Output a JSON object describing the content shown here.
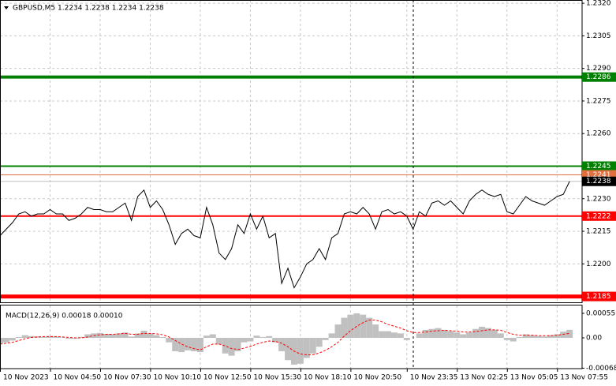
{
  "chart_data": [
    {
      "type": "line",
      "title": "GBPUSD,M5  1.2234 1.2238 1.2234 1.2238",
      "series": [
        {
          "color": "#000000",
          "values": [
            1.2213,
            1.2216,
            1.2219,
            1.2223,
            1.2224,
            1.2222,
            1.2223,
            1.2223,
            1.2225,
            1.2223,
            1.2223,
            1.222,
            1.2221,
            1.2223,
            1.2226,
            1.2225,
            1.2225,
            1.2224,
            1.2224,
            1.2226,
            1.2228,
            1.222,
            1.2231,
            1.2234,
            1.2226,
            1.2229,
            1.2225,
            1.2218,
            1.2209,
            1.2214,
            1.2216,
            1.2213,
            1.2212,
            1.2226,
            1.2218,
            1.2205,
            1.2202,
            1.2207,
            1.2218,
            1.2214,
            1.2223,
            1.2216,
            1.2222,
            1.2212,
            1.2214,
            1.2191,
            1.2198,
            1.2189,
            1.2194,
            1.22,
            1.2202,
            1.2207,
            1.2202,
            1.2212,
            1.2214,
            1.2223,
            1.2224,
            1.2223,
            1.2226,
            1.2223,
            1.2216,
            1.2224,
            1.2225,
            1.2223,
            1.2224,
            1.2222,
            1.2216,
            1.2224,
            1.2222,
            1.2228,
            1.2229,
            1.2227,
            1.2229,
            1.2226,
            1.2223,
            1.2229,
            1.2232,
            1.2234,
            1.2232,
            1.2231,
            1.2232,
            1.2224,
            1.2223,
            1.2227,
            1.2231,
            1.2229,
            1.2228,
            1.2227,
            1.2229,
            1.2231,
            1.2232,
            1.2238
          ]
        }
      ],
      "levels": [
        {
          "value": 1.2286,
          "color": "#008000",
          "width": 4
        },
        {
          "value": 1.2245,
          "color": "#008000",
          "width": 2
        },
        {
          "value": 1.2241,
          "color": "#e07040",
          "width": 1
        },
        {
          "value": 1.2238,
          "color": "#c0c0c0",
          "width": 1
        },
        {
          "value": 1.2222,
          "color": "#ff0000",
          "width": 2
        },
        {
          "value": 1.2185,
          "color": "#ff0000",
          "width": 5
        }
      ],
      "ylim": [
        1.21823,
        1.23215
      ],
      "yticks": [
        {
          "value": 1.232,
          "label": "1.2320"
        },
        1.2305,
        {
          "value": 1.229,
          "label": "1.2290"
        },
        1.2275,
        {
          "value": 1.226,
          "label": "1.2260"
        },
        {
          "value": 1.223,
          "label": "1.2230"
        },
        1.2215,
        {
          "value": 1.22,
          "label": "1.2200"
        }
      ],
      "xlim": [
        0,
        93
      ],
      "xticks": [
        {
          "value": 0,
          "label": "10 Nov 2023"
        },
        {
          "value": 8,
          "label": "10 Nov 04:50"
        },
        {
          "value": 16,
          "label": "10 Nov 07:30"
        },
        {
          "value": 24,
          "label": "10 Nov 10:10"
        },
        {
          "value": 32,
          "label": "10 Nov 12:50"
        },
        {
          "value": 40,
          "label": "10 Nov 15:30"
        },
        {
          "value": 48,
          "label": "10 Nov 18:10"
        },
        {
          "value": 56,
          "label": "10 Nov 20:50"
        },
        {
          "value": 65,
          "label": "10 Nov 23:35"
        },
        {
          "value": 73,
          "label": "13 Nov 02:25"
        },
        {
          "value": 81,
          "label": "13 Nov 05:05"
        },
        {
          "value": 89,
          "label": "13 Nov 07:55"
        }
      ],
      "grid": true
    },
    {
      "type": "macd",
      "title": "MACD(12,26,9) 0.00018 0.00010",
      "histogram": {
        "color": "#c0c0c0",
        "values": [
          -0.00012,
          -0.0001,
          -6e-05,
          2e-05,
          6e-05,
          4e-05,
          3e-05,
          2e-05,
          4e-05,
          3e-05,
          1e-05,
          -2e-05,
          -2e-05,
          2e-05,
          8e-05,
          0.0001,
          0.00011,
          9e-05,
          8e-05,
          0.0001,
          0.00012,
          3e-05,
          0.0001,
          0.00016,
          0.0001,
          6e-05,
          2e-05,
          -0.0001,
          -0.0003,
          -0.00032,
          -0.00028,
          -0.0003,
          -0.00032,
          5e-05,
          8e-05,
          -0.00015,
          -0.00035,
          -0.0004,
          -0.0003,
          -0.0001,
          -8e-05,
          5e-05,
          2e-05,
          4e-05,
          -0.0001,
          -0.0003,
          -0.0005,
          -0.0006,
          -0.00058,
          -0.00045,
          -0.00035,
          -0.0002,
          -5e-05,
          0.0001,
          0.0003,
          0.00045,
          0.00052,
          0.00055,
          0.00052,
          0.00045,
          0.0003,
          0.00015,
          0.00015,
          0.00012,
          0.0001,
          -5e-05,
          0,
          0.0001,
          0.00018,
          0.0002,
          0.00022,
          0.00018,
          0.00015,
          0.00012,
          8e-05,
          0.00012,
          0.0002,
          0.00025,
          0.00022,
          0.00018,
          0.0001,
          -5e-05,
          -8e-05,
          2e-05,
          8e-05,
          6e-05,
          4e-05,
          3e-05,
          6e-05,
          8e-05,
          0.00014,
          0.00018
        ]
      },
      "signal": {
        "color": "#ff0000",
        "values": [
          -0.00014,
          -0.00012,
          -0.0001,
          -6e-05,
          -2e-05,
          1e-05,
          2e-05,
          3e-05,
          3e-05,
          3e-05,
          2e-05,
          1e-05,
          0,
          0,
          2e-05,
          5e-05,
          7e-05,
          8e-05,
          8e-05,
          9e-05,
          0.0001,
          8e-05,
          8e-05,
          0.0001,
          0.0001,
          9e-05,
          7e-05,
          2e-05,
          -6e-05,
          -0.00014,
          -0.0002,
          -0.00024,
          -0.00027,
          -0.0002,
          -0.00014,
          -0.00014,
          -0.00018,
          -0.00024,
          -0.00026,
          -0.00023,
          -0.00019,
          -0.00014,
          -0.0001,
          -7e-05,
          -8e-05,
          -0.00012,
          -0.0002,
          -0.0003,
          -0.00036,
          -0.00038,
          -0.00038,
          -0.00034,
          -0.00028,
          -0.0002,
          -0.0001,
          4e-05,
          0.00016,
          0.00026,
          0.00034,
          0.0004,
          0.0004,
          0.00036,
          0.0003,
          0.00026,
          0.00022,
          0.00016,
          0.00012,
          0.00012,
          0.00013,
          0.00015,
          0.00016,
          0.00017,
          0.00016,
          0.00015,
          0.00013,
          0.00013,
          0.00014,
          0.00016,
          0.00018,
          0.00018,
          0.00017,
          0.00012,
          8e-05,
          6e-05,
          6e-05,
          6e-05,
          5e-05,
          5e-05,
          5e-05,
          6e-05,
          8e-05,
          0.0001
        ]
      },
      "ylim": [
        -0.00069,
        0.00062
      ],
      "yticks": [
        0.00055,
        {
          "value": 0,
          "label": "0.00"
        },
        -0.00068
      ]
    }
  ]
}
